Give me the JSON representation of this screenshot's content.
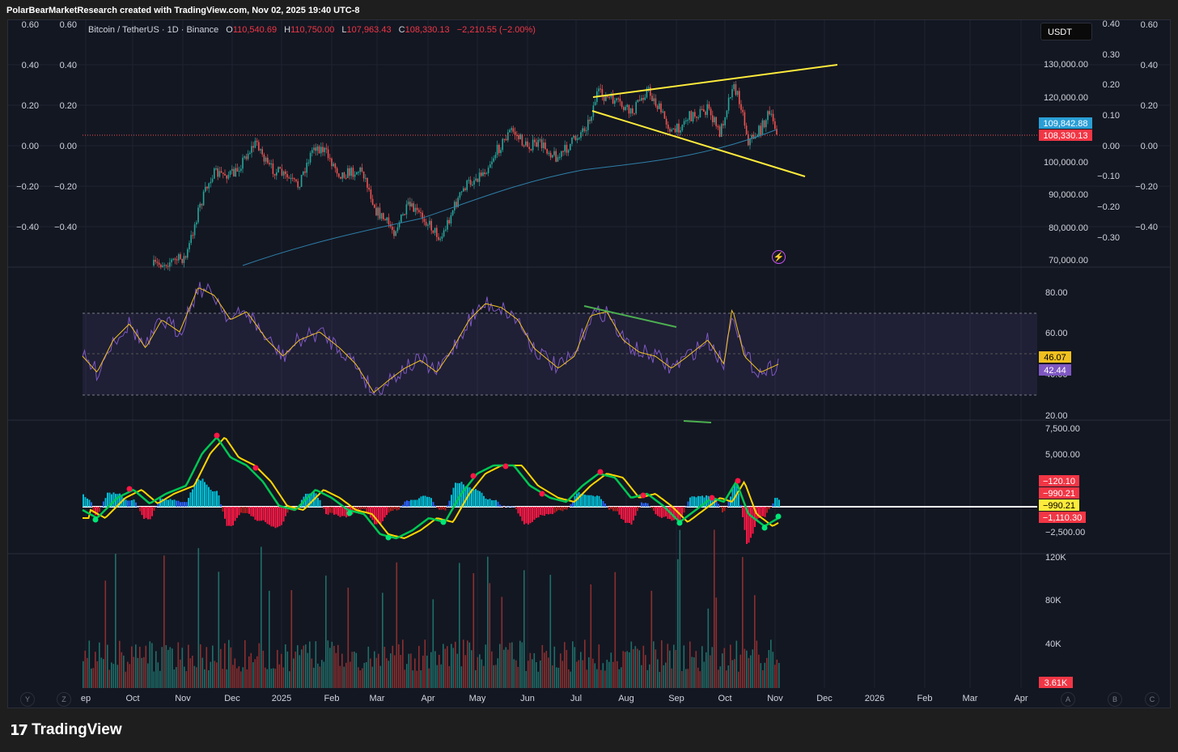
{
  "header": {
    "credit": "PolarBearMarketResearch created with TradingView.com, Nov 02, 2025 19:40 UTC-8"
  },
  "symbol": {
    "name": "Bitcoin / TetherUS · 1D · Binance",
    "open_label": "O",
    "open": "110,540.69",
    "high_label": "H",
    "high": "110,750.00",
    "low_label": "L",
    "low": "107,963.43",
    "close_label": "C",
    "close": "108,330.13",
    "change": "−2,210.55 (−2.00%)"
  },
  "currency_button": "USDT",
  "price_axis": {
    "labels": [
      "130,000.00",
      "120,000.00",
      "100,000.00",
      "90,000.00",
      "80,000.00",
      "70,000.00"
    ],
    "tag_ma": "109,842.88",
    "tag_last": "108,330.13"
  },
  "overlay_axis_right_inner": {
    "labels": [
      "0.40",
      "0.30",
      "0.20",
      "0.10",
      "0.00",
      "−0.10",
      "−0.20",
      "−0.30"
    ]
  },
  "overlay_axis_right_outer": {
    "labels": [
      "0.60",
      "0.40",
      "0.20",
      "0.00",
      "−0.20",
      "−0.40"
    ]
  },
  "overlay_axis_left_a": {
    "labels": [
      "0.60",
      "0.40",
      "0.20",
      "0.00",
      "−0.20",
      "−0.40"
    ]
  },
  "overlay_axis_left_b": {
    "labels": [
      "0.60",
      "0.40",
      "0.20",
      "0.00",
      "−0.20",
      "−0.40"
    ]
  },
  "rsi_axis": {
    "labels": [
      "80.00",
      "60.00",
      "40.00",
      "20.00"
    ],
    "tag_ma": "46.07",
    "tag_rsi": "42.44"
  },
  "macd_axis": {
    "labels": [
      "7,500.00",
      "5,000.00",
      "−2,500.00"
    ],
    "tags": [
      "−120.10",
      "−990.21",
      "−990.21",
      "−1,110.30"
    ]
  },
  "volume_axis": {
    "labels": [
      "120K",
      "80K",
      "40K"
    ],
    "tag": "3.61K"
  },
  "time_axis": {
    "labels": [
      "ep",
      "Oct",
      "Nov",
      "Dec",
      "2025",
      "Feb",
      "Mar",
      "Apr",
      "May",
      "Jun",
      "Jul",
      "Aug",
      "Sep",
      "Oct",
      "Nov",
      "Dec",
      "2026",
      "Feb",
      "Mar",
      "Apr"
    ]
  },
  "corner_buttons": {
    "y": "Y",
    "z": "Z",
    "a": "A",
    "b": "B",
    "c": "C"
  },
  "footer": {
    "brand": "TradingView"
  },
  "colors": {
    "background": "#131722",
    "up": "#26a69a",
    "down": "#ef5350",
    "trendline": "#ffeb3b",
    "rsi": "#7e57c2",
    "ma_line": "#2196f3",
    "macd_green": "#00e676",
    "macd_red": "#ff1744"
  },
  "chart_data": {
    "type": "candlestick",
    "title": "Bitcoin / TetherUS · 1D · Binance",
    "price_ticks": [
      130000,
      120000,
      100000,
      90000,
      80000,
      70000
    ],
    "last_price": 108330.13,
    "ma_value": 109842.88,
    "rsi": {
      "value": 42.44,
      "ma": 46.07,
      "ticks": [
        80,
        60,
        40,
        20
      ]
    },
    "macd": {
      "values": [
        -120.1,
        -990.21,
        -990.21,
        -1110.3
      ],
      "ticks": [
        7500,
        5000,
        -2500
      ]
    },
    "volume": {
      "last": "3.61K",
      "ticks": [
        "120K",
        "80K",
        "40K"
      ]
    }
  }
}
